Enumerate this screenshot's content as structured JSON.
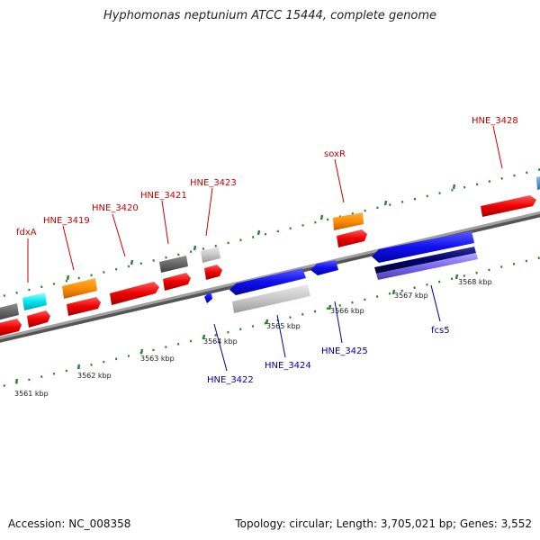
{
  "title": "Hyphomonas neptunium ATCC 15444, complete genome",
  "footer": {
    "accession": "Accession: NC_008358",
    "summary": "Topology: circular; Length: 3,705,021 bp; Genes: 3,552"
  },
  "colors": {
    "backbone": "#8c8c8c",
    "tick_dots": "#2e7d32",
    "forward_label": "#cc0000",
    "reverse_label": "#000099"
  },
  "scale_labels": [
    "3561 kbp",
    "3562 kbp",
    "3563 kbp",
    "3564 kbp",
    "3565 kbp",
    "3566 kbp",
    "3567 kbp",
    "3568 kbp"
  ],
  "forward_labels": [
    "fdxA",
    "HNE_3419",
    "HNE_3420",
    "HNE_3421",
    "HNE_3423",
    "soxR",
    "HNE_3428"
  ],
  "reverse_labels": [
    "HNE_3422",
    "HNE_3424",
    "HNE_3425",
    "fcs5"
  ]
}
